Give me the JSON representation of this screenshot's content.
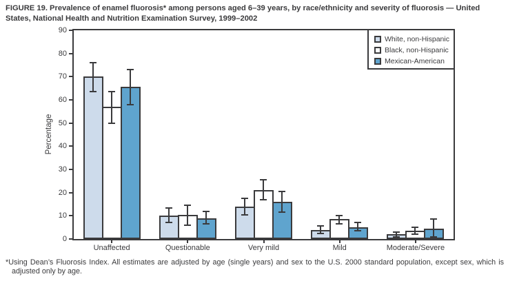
{
  "figure": {
    "title": "FIGURE 19. Prevalence of enamel fluorosis* among persons aged 6–39 years, by race/ethnicity and severity of fluorosis — United States, National Health and Nutrition Examination Survey, 1999–2002",
    "footnote_marker": "*",
    "footnote_text": "Using Dean’s Fluorosis Index. All estimates are adjusted by age (single years) and sex to the U.S. 2000 standard population, except sex, which is adjusted only by age."
  },
  "colors": {
    "frame": "#3a3a3c",
    "white_non_hispanic": "#cddbeb",
    "black_non_hispanic": "#ffffff",
    "mexican_american": "#5fa4ce"
  },
  "chart_data": {
    "type": "bar",
    "title": "",
    "xlabel": "",
    "ylabel": "Percentage",
    "ylim": [
      0,
      90
    ],
    "yticks": [
      0,
      10,
      20,
      30,
      40,
      50,
      60,
      70,
      80,
      90
    ],
    "grid": false,
    "error_bars": true,
    "legend_position": "top-right-inside",
    "categories": [
      "Unaffected",
      "Questionable",
      "Very mild",
      "Mild",
      "Moderate/Severe"
    ],
    "series": [
      {
        "name": "White, non-Hispanic",
        "color": "#cddbeb",
        "values": [
          70,
          10,
          14,
          4,
          2
        ],
        "ci_low": [
          63.5,
          7,
          10.5,
          2.5,
          1
        ],
        "ci_high": [
          76,
          13.5,
          17.5,
          5.5,
          3
        ]
      },
      {
        "name": "Black, non-Hispanic",
        "color": "#ffffff",
        "values": [
          57,
          10.5,
          21,
          8.5,
          3.5
        ],
        "ci_low": [
          50,
          6,
          17,
          6.5,
          2
        ],
        "ci_high": [
          63.5,
          14.5,
          25.5,
          10,
          5
        ]
      },
      {
        "name": "Mexican-American",
        "color": "#5fa4ce",
        "values": [
          65.5,
          9,
          16,
          5,
          4.5
        ],
        "ci_low": [
          58,
          6.5,
          11.5,
          3.5,
          1
        ],
        "ci_high": [
          73,
          12,
          20.5,
          7,
          8.5
        ]
      }
    ]
  }
}
